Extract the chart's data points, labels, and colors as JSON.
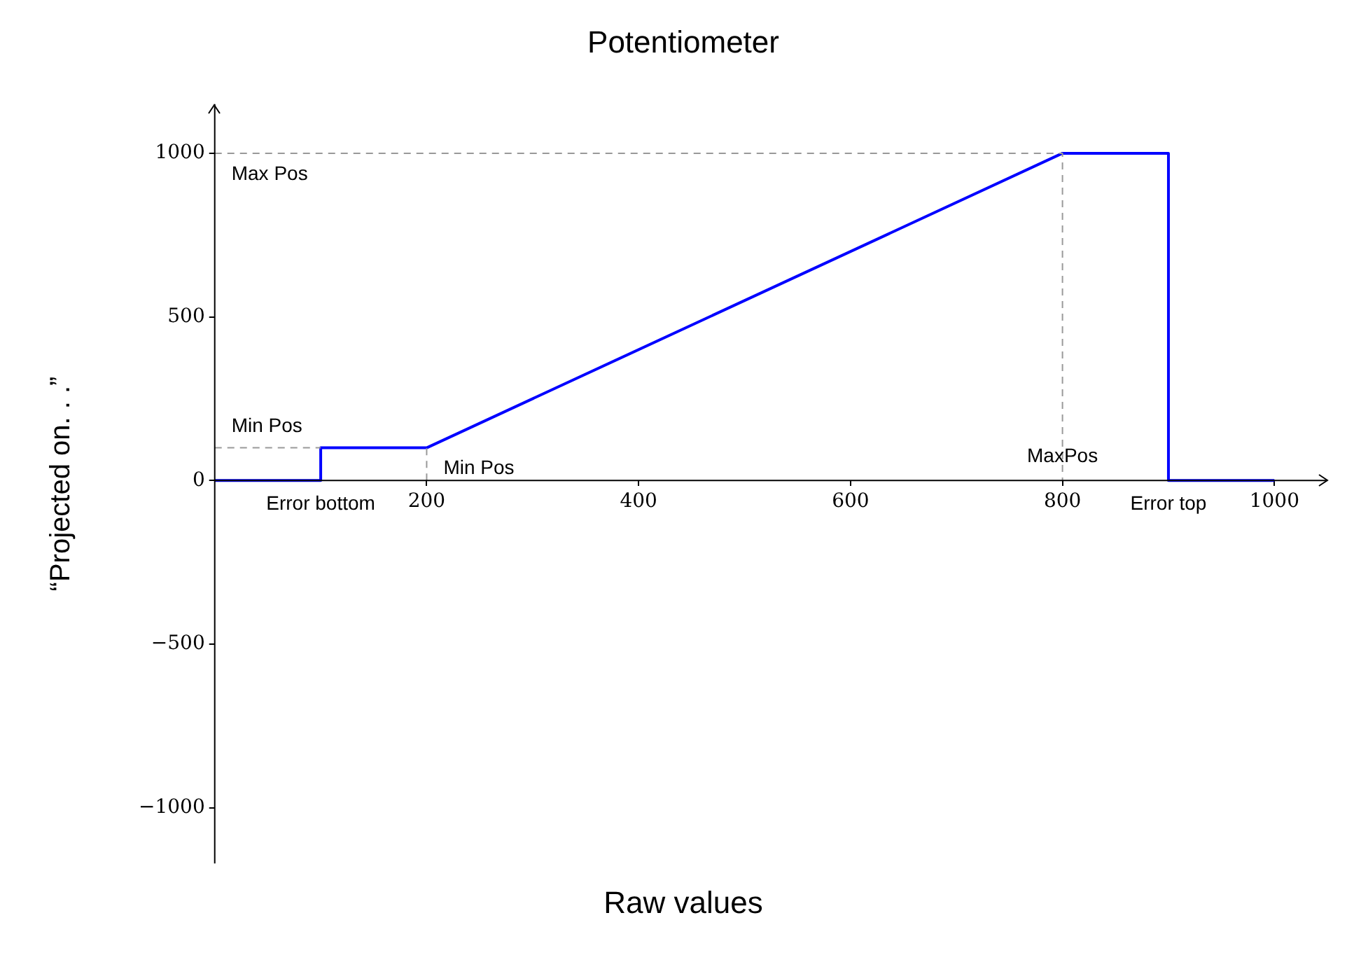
{
  "chart_data": {
    "type": "line",
    "title": "Potentiometer",
    "xlabel": "Raw values",
    "ylabel": "“Projected on. . .”",
    "xlim": [
      0,
      1050
    ],
    "ylim": [
      -1170,
      1150
    ],
    "xticks": [
      200,
      400,
      600,
      800,
      1000
    ],
    "yticks": [
      -1000,
      -500,
      0,
      500,
      1000
    ],
    "grid": false,
    "legend": false,
    "marker": "none",
    "series": [
      {
        "color": "#999999",
        "line_style": "dashed",
        "x": [
          0,
          800,
          800
        ],
        "values": [
          1000,
          1000,
          0
        ]
      },
      {
        "color": "#999999",
        "line_style": "dashed",
        "x": [
          0,
          100
        ],
        "values": [
          100,
          100
        ]
      },
      {
        "color": "#999999",
        "line_style": "dashed",
        "x": [
          200,
          200
        ],
        "values": [
          0,
          100
        ]
      },
      {
        "color": "#0000ff",
        "line_style": "solid",
        "x": [
          0,
          100,
          100,
          200,
          800,
          900,
          900,
          1000
        ],
        "values": [
          0,
          0,
          100,
          100,
          1000,
          1000,
          0,
          0
        ]
      }
    ],
    "annotations": [
      {
        "text": "Max Pos",
        "x": 0,
        "y": 1000
      },
      {
        "text": "Min Pos",
        "x": 0,
        "y": 100
      },
      {
        "text": "Min Pos",
        "x": 200,
        "y": 100
      },
      {
        "text": "MaxPos",
        "x": 800,
        "y": 0
      },
      {
        "text": "Error bottom",
        "x": 100,
        "y": 0
      },
      {
        "text": "Error top",
        "x": 900,
        "y": 0
      }
    ]
  }
}
